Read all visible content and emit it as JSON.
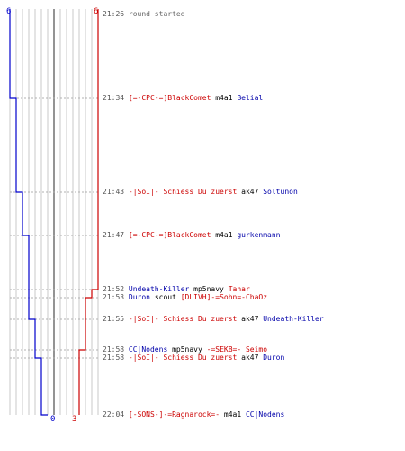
{
  "scores": {
    "blue_start": "6",
    "red_start": "6",
    "blue_end": "0",
    "red_end": "3"
  },
  "colors": {
    "blue": "#0000cc",
    "red": "#cc0000",
    "grid": "#c8c8c8",
    "center": "#666666"
  },
  "blue_track": [
    6,
    5,
    4,
    3,
    2,
    1,
    0
  ],
  "red_track": [
    6,
    5,
    4,
    3
  ],
  "events": [
    {
      "time": "21:26",
      "parts": [
        {
          "text": "round started",
          "color": "gray"
        }
      ]
    },
    {
      "time": "21:34",
      "parts": [
        {
          "text": "[=-CPC-=]BlackComet",
          "color": "red"
        },
        {
          "text": " m4a1 ",
          "color": "black"
        },
        {
          "text": "Belial",
          "color": "blue"
        }
      ]
    },
    {
      "time": "21:43",
      "parts": [
        {
          "text": "-|SoI|- Schiess Du zuerst",
          "color": "red"
        },
        {
          "text": " ak47 ",
          "color": "black"
        },
        {
          "text": "Soltunon",
          "color": "blue"
        }
      ]
    },
    {
      "time": "21:47",
      "parts": [
        {
          "text": "[=-CPC-=]BlackComet",
          "color": "red"
        },
        {
          "text": " m4a1 ",
          "color": "black"
        },
        {
          "text": "gurkenmann",
          "color": "blue"
        }
      ]
    },
    {
      "time": "21:52",
      "parts": [
        {
          "text": "Undeath-Killer",
          "color": "blue"
        },
        {
          "text": " mp5navy ",
          "color": "black"
        },
        {
          "text": "Tahar",
          "color": "red"
        }
      ]
    },
    {
      "time": "21:53",
      "parts": [
        {
          "text": "Duron",
          "color": "blue"
        },
        {
          "text": " scout ",
          "color": "black"
        },
        {
          "text": "[DLIVH]-=Sohn=-ChaOz",
          "color": "red"
        }
      ]
    },
    {
      "time": "21:55",
      "parts": [
        {
          "text": "-|SoI|- Schiess Du zuerst",
          "color": "red"
        },
        {
          "text": " ak47 ",
          "color": "black"
        },
        {
          "text": "Undeath-Killer",
          "color": "blue"
        }
      ]
    },
    {
      "time": "21:58",
      "parts": [
        {
          "text": "CC|Nodens",
          "color": "blue"
        },
        {
          "text": " mp5navy ",
          "color": "black"
        },
        {
          "text": "-=SEKB=- Seimo",
          "color": "red"
        }
      ]
    },
    {
      "time": "21:58",
      "parts": [
        {
          "text": "-|SoI|- Schiess Du zuerst",
          "color": "red"
        },
        {
          "text": " ak47 ",
          "color": "black"
        },
        {
          "text": "Duron",
          "color": "blue"
        }
      ]
    },
    {
      "time": "22:04",
      "parts": [
        {
          "text": "[-SONS-]-=Ragnarock=-",
          "color": "red"
        },
        {
          "text": " m4a1 ",
          "color": "black"
        },
        {
          "text": "CC|Nodens",
          "color": "blue"
        }
      ]
    }
  ]
}
